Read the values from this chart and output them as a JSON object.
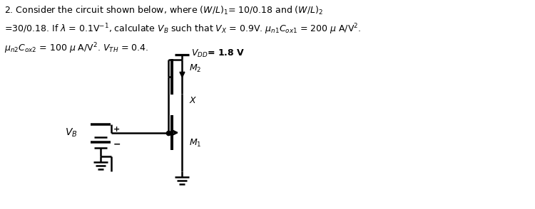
{
  "vdd_label": "$V_{DD}$= 1.8 V",
  "m1_label": "$M_1$",
  "m2_label": "$M_2$",
  "vb_label": "$V_B$",
  "x_label": "$X$",
  "plus_label": "+",
  "minus_label": "−",
  "bg_color": "#ffffff",
  "line_color": "#000000",
  "default_lw": 1.8
}
